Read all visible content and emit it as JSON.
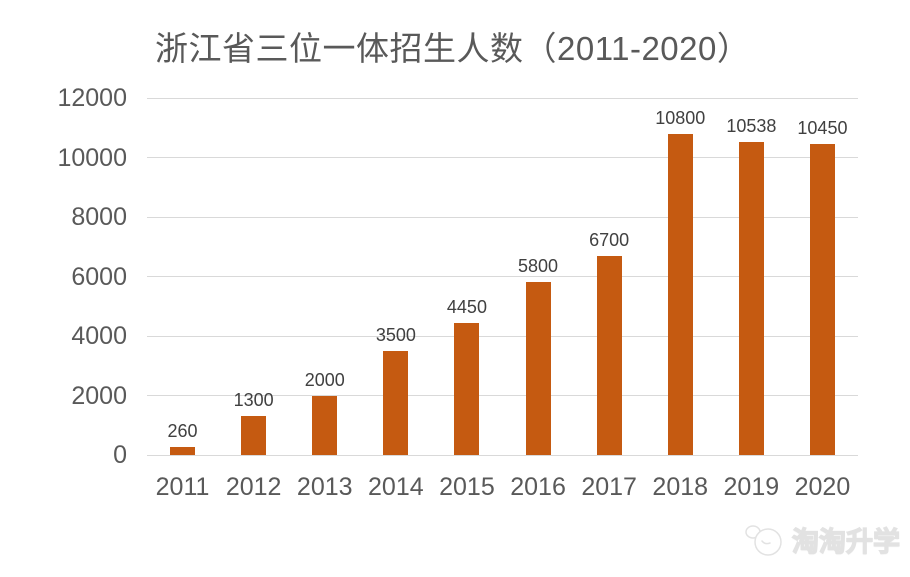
{
  "chart_data": {
    "type": "bar",
    "title": "浙江省三位一体招生人数（2011-2020）",
    "categories": [
      "2011",
      "2012",
      "2013",
      "2014",
      "2015",
      "2016",
      "2017",
      "2018",
      "2019",
      "2020"
    ],
    "values": [
      260,
      1300,
      2000,
      3500,
      4450,
      5800,
      6700,
      10800,
      10538,
      10450
    ],
    "data_labels": [
      "260",
      "1300",
      "2000",
      "3500",
      "4450",
      "5800",
      "6700",
      "10800",
      "10538",
      "10450"
    ],
    "xlabel": "",
    "ylabel": "",
    "ylim": [
      0,
      12000
    ],
    "yticks": [
      0,
      2000,
      4000,
      6000,
      8000,
      10000,
      12000
    ],
    "grid": "horizontal",
    "legend_position": "none",
    "bar_color": "#c55a11",
    "gridline_color": "#d9d9d9",
    "axis_label_color": "#595959",
    "data_label_color": "#404040",
    "title_color": "#595959"
  },
  "watermark": {
    "text": "淘淘升学",
    "logo": "taotao-logo-icon"
  }
}
